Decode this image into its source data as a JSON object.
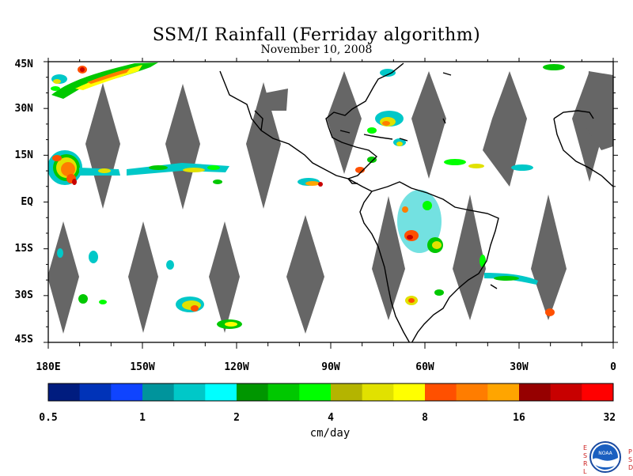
{
  "title": "SSM/I Rainfall (Ferriday algorithm)",
  "date": "November 10, 2008",
  "map": {
    "lon_range": [
      -180,
      0
    ],
    "lat_range": [
      -45,
      45
    ],
    "lat_labels": [
      "45N",
      "30N",
      "15N",
      "EQ",
      "15S",
      "30S",
      "45S"
    ],
    "lon_labels": [
      "180E",
      "150W",
      "120W",
      "90W",
      "60W",
      "30W",
      "0"
    ],
    "no_data_color": "#666666",
    "coastline_color": "#000000"
  },
  "colorbar": {
    "units": "cm/day",
    "tick_labels": [
      "0.5",
      "1",
      "2",
      "4",
      "8",
      "16",
      "32"
    ],
    "colors": [
      "#001c7f",
      "#0033b8",
      "#0f44ff",
      "#00949c",
      "#00c8c8",
      "#00ffff",
      "#009600",
      "#00c800",
      "#00ff00",
      "#b4b400",
      "#e1e100",
      "#ffff00",
      "#ff5000",
      "#ff7d00",
      "#ffa500",
      "#960000",
      "#c80000",
      "#ff0000"
    ]
  },
  "logo": {
    "left_letters": "ESRL",
    "right_letters": "PSD",
    "center_text": "NOAA"
  }
}
